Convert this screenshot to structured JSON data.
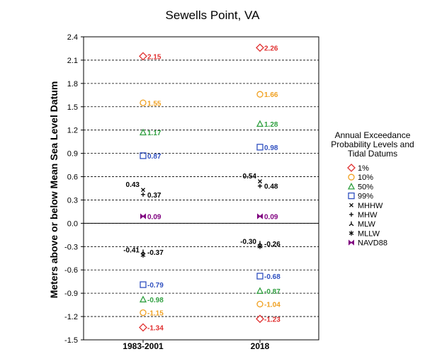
{
  "chart_data": {
    "type": "scatter",
    "title": "Sewells Point, VA",
    "ylabel": "Meters above or below Mean Sea Level Datum",
    "xlabel": "",
    "categories": [
      "1983-2001",
      "2018"
    ],
    "ylim": [
      -1.5,
      2.4
    ],
    "yticks": [
      "2.4",
      "2.1",
      "1.8",
      "1.5",
      "1.2",
      "0.9",
      "0.6",
      "0.3",
      "0.0",
      "-0.3",
      "-0.6",
      "-0.9",
      "-1.2",
      "-1.5"
    ],
    "grid": "horizontal dashed",
    "legend": {
      "placement": "right",
      "title": [
        "Annual Exceedance",
        "Probability Levels and",
        "Tidal Datums"
      ]
    },
    "series": [
      {
        "name": "1%",
        "marker": "diamond",
        "color": "#e03030",
        "values": [
          2.15,
          2.26
        ],
        "labels": [
          "2.15",
          "2.26"
        ]
      },
      {
        "name": "10%",
        "marker": "circle",
        "color": "#f0a020",
        "values": [
          1.55,
          1.66
        ],
        "labels": [
          "1.55",
          "1.66"
        ]
      },
      {
        "name": "50%",
        "marker": "triangle",
        "color": "#30a040",
        "values": [
          1.17,
          1.28
        ],
        "labels": [
          "1.17",
          "1.28"
        ]
      },
      {
        "name": "99%",
        "marker": "square",
        "color": "#3050c0",
        "values": [
          0.87,
          0.98
        ],
        "labels": [
          "0.87",
          "0.98"
        ]
      },
      {
        "name": "MHHW",
        "marker": "x",
        "color": "#000000",
        "values": [
          0.43,
          0.54
        ],
        "labels": [
          "0.43",
          "0.54"
        ]
      },
      {
        "name": "MHW",
        "marker": "plus",
        "color": "#000000",
        "values": [
          0.37,
          0.48
        ],
        "labels": [
          "0.37",
          "0.48"
        ]
      },
      {
        "name": "MLW",
        "marker": "tri",
        "color": "#000000",
        "values": [
          -0.37,
          -0.26
        ],
        "labels": [
          "-0.37",
          "-0.26"
        ]
      },
      {
        "name": "MLLW",
        "marker": "star",
        "color": "#000000",
        "values": [
          -0.41,
          -0.3
        ],
        "labels": [
          "-0.41",
          "-0.30"
        ]
      },
      {
        "name": "NAVD88",
        "marker": "bowtie",
        "color": "#800080",
        "values": [
          0.09,
          0.09
        ],
        "labels": [
          "0.09",
          "0.09"
        ]
      },
      {
        "name": "99%",
        "marker": "square",
        "color": "#3050c0",
        "values": [
          -0.79,
          -0.68
        ],
        "labels": [
          "-0.79",
          "-0.68"
        ],
        "legend": false
      },
      {
        "name": "50%",
        "marker": "triangle",
        "color": "#30a040",
        "values": [
          -0.98,
          -0.87
        ],
        "labels": [
          "-0.98",
          "-0.87"
        ],
        "legend": false
      },
      {
        "name": "10%",
        "marker": "circle",
        "color": "#f0a020",
        "values": [
          -1.15,
          -1.04
        ],
        "labels": [
          "-1.15",
          "-1.04"
        ],
        "legend": false
      },
      {
        "name": "1%",
        "marker": "diamond",
        "color": "#e03030",
        "values": [
          -1.34,
          -1.23
        ],
        "labels": [
          "-1.34",
          "-1.23"
        ],
        "legend": false
      }
    ]
  }
}
